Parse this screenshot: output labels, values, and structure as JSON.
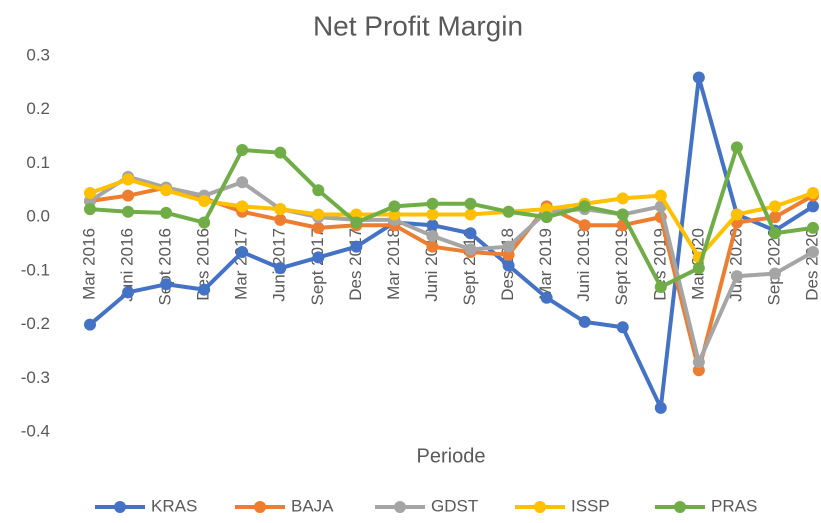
{
  "chart_data": {
    "type": "line",
    "title": "Net Profit Margin",
    "x_label": "Periode",
    "categories": [
      "Mar 2016",
      "Juni 2016",
      "Sept 2016",
      "Des 2016",
      "Mar 2017",
      "Juni 2017",
      "Sept 2017",
      "Des 2017",
      "Mar 2018",
      "Juni 2018",
      "Sept 2018",
      "Des 2018",
      "Mar 2019",
      "Juni 2019",
      "Sept 2019",
      "Des 2019",
      "Mar 2020",
      "Juni 2020",
      "Sept 2020",
      "Des 2020"
    ],
    "series": [
      {
        "name": "KRAS",
        "color": "#4472c4",
        "values": [
          -0.2,
          -0.14,
          -0.125,
          -0.135,
          -0.065,
          -0.095,
          -0.075,
          -0.055,
          -0.01,
          -0.015,
          -0.03,
          -0.09,
          -0.15,
          -0.195,
          -0.205,
          -0.355,
          0.26,
          0.005,
          -0.025,
          0.02
        ]
      },
      {
        "name": "BAJA",
        "color": "#ed7d31",
        "values": [
          0.03,
          0.04,
          0.055,
          0.035,
          0.01,
          -0.005,
          -0.02,
          -0.015,
          -0.015,
          -0.055,
          -0.065,
          -0.07,
          0.02,
          -0.015,
          -0.015,
          0.0,
          -0.285,
          -0.01,
          0.0,
          0.04
        ]
      },
      {
        "name": "GDST",
        "color": "#a5a5a5",
        "values": [
          0.03,
          0.075,
          0.055,
          0.04,
          0.065,
          0.015,
          0.0,
          -0.005,
          -0.005,
          -0.035,
          -0.06,
          -0.055,
          0.01,
          0.015,
          0.005,
          0.02,
          -0.27,
          -0.11,
          -0.105,
          -0.065
        ]
      },
      {
        "name": "ISSP",
        "color": "#ffc000",
        "values": [
          0.045,
          0.07,
          0.05,
          0.03,
          0.02,
          0.015,
          0.005,
          0.005,
          0.005,
          0.005,
          0.005,
          0.01,
          0.015,
          0.025,
          0.035,
          0.04,
          -0.075,
          0.005,
          0.02,
          0.045
        ]
      },
      {
        "name": "PRAS",
        "color": "#70ad47",
        "values": [
          0.015,
          0.01,
          0.008,
          -0.01,
          0.125,
          0.12,
          0.05,
          -0.01,
          0.02,
          0.025,
          0.025,
          0.01,
          0.0,
          0.02,
          0.005,
          -0.13,
          -0.095,
          0.13,
          -0.03,
          -0.02
        ]
      }
    ],
    "ylim": [
      -0.4,
      0.3
    ],
    "yticks": [
      -0.4,
      -0.3,
      -0.2,
      -0.1,
      {
        "value": 0,
        "label": "0.0"
      },
      0.1,
      0.2,
      0.3
    ],
    "grid": false
  }
}
